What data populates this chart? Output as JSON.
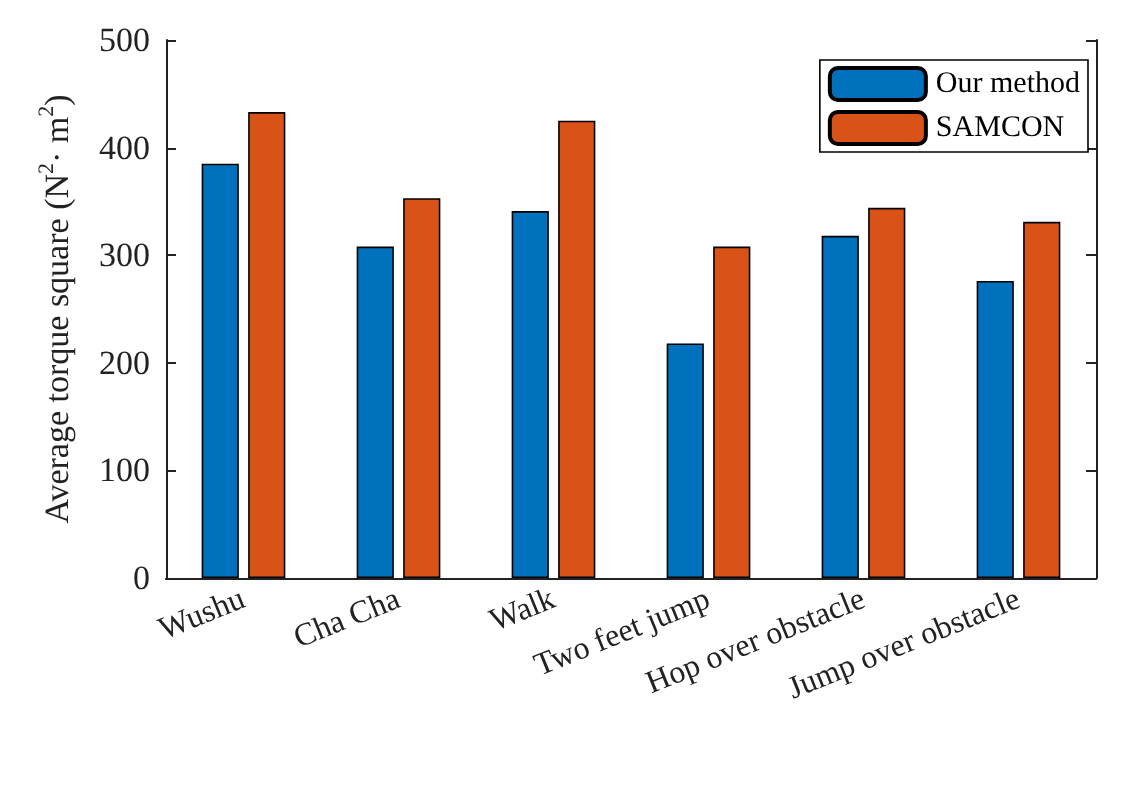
{
  "chart_data": {
    "type": "bar",
    "ylabel": "Average torque square (N$^{2}$· m$^{2}$)",
    "categories": [
      "Wushu",
      "Cha Cha",
      "Walk",
      "Two feet jump",
      "Hop over obstacle",
      "Jump over obstacle"
    ],
    "series": [
      {
        "name": "Our method",
        "color": "#0072bd",
        "values": [
          385,
          308,
          341,
          218,
          318,
          276
        ]
      },
      {
        "name": "SAMCON",
        "color": "#d95319",
        "values": [
          433,
          353,
          425,
          308,
          344,
          331
        ]
      }
    ],
    "ylim": [
      0,
      500
    ],
    "yticks": [
      0,
      100,
      200,
      300,
      400,
      500
    ],
    "grid": false,
    "legend": "top right"
  }
}
